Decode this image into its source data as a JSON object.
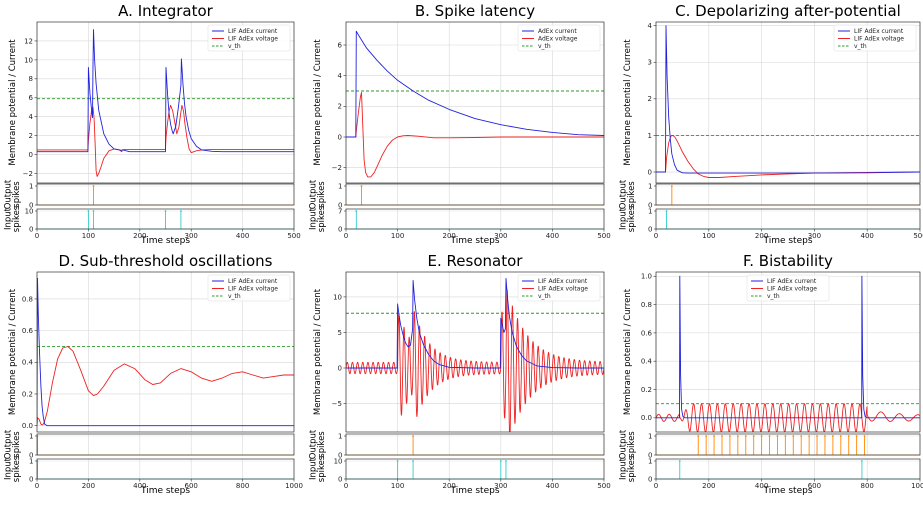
{
  "colors": {
    "current": "#2222dd",
    "voltage": "#ee2222",
    "threshold": "#2a9a2a",
    "output": "#ff8800",
    "input": "#33cccc"
  },
  "chart_data": [
    {
      "type": "line",
      "title": "A. Integrator",
      "ylabel": "Membrane potential / Current",
      "xlabel": "Time steps",
      "out_ylabel": "Output spikes",
      "in_ylabel": "Input spikes",
      "xlim": [
        0,
        500
      ],
      "ylim": [
        -3,
        14
      ],
      "xticks": [
        0,
        100,
        200,
        300,
        400,
        500
      ],
      "yticks": [
        -2,
        0,
        2,
        4,
        6,
        8,
        10,
        12
      ],
      "legend": [
        "LIF AdEx current",
        "LIF AdEx voltage",
        "v_th"
      ],
      "legend_placement": "top-right",
      "threshold": 5.9,
      "series": [
        {
          "name": "LIF AdEx current",
          "x": [
            0,
            99,
            100,
            103,
            106,
            108,
            109,
            110,
            112,
            115,
            120,
            130,
            140,
            150,
            165,
            166,
            170,
            180,
            200,
            250,
            251,
            254,
            257,
            260,
            263,
            265,
            270,
            275,
            280,
            281,
            284,
            287,
            290,
            295,
            300,
            310,
            320,
            340,
            360,
            400,
            500
          ],
          "y": [
            0.3,
            0.3,
            9.2,
            6.5,
            4.8,
            3.9,
            9.5,
            13.2,
            10,
            7.5,
            4.7,
            2.2,
            1.1,
            0.6,
            0.45,
            0.5,
            0.45,
            0.3,
            0.3,
            0.3,
            9.2,
            6.3,
            4.3,
            3.2,
            2.5,
            2.2,
            3,
            5,
            7.3,
            10.1,
            7.4,
            5.4,
            4.0,
            2.6,
            1.7,
            0.9,
            0.5,
            0.35,
            0.3,
            0.3,
            0.3
          ]
        },
        {
          "name": "LIF AdEx voltage",
          "x": [
            0,
            99,
            100,
            103,
            106,
            109,
            111,
            113,
            115,
            117,
            120,
            125,
            130,
            140,
            150,
            160,
            165,
            166,
            170,
            200,
            250,
            251,
            254,
            257,
            260,
            264,
            268,
            272,
            276,
            280,
            282,
            285,
            288,
            292,
            296,
            300,
            305,
            310,
            320,
            340,
            360,
            400,
            500
          ],
          "y": [
            0.5,
            0.5,
            1.5,
            3.3,
            4.6,
            5,
            3.8,
            1.2,
            -1.7,
            -2.3,
            -2,
            -1.2,
            -0.4,
            0.4,
            0.6,
            0.5,
            0.3,
            0.5,
            0.55,
            0.55,
            0.55,
            1.8,
            3.4,
            4.6,
            5.2,
            4.6,
            3.4,
            2.2,
            2.9,
            4.5,
            5.2,
            4.6,
            3.2,
            1.7,
            0.6,
            0.2,
            0.3,
            0.4,
            0.5,
            0.55,
            0.55,
            0.55,
            0.55
          ]
        }
      ],
      "output_spikes": [
        {
          "x": 110,
          "h": 1
        }
      ],
      "out_ylim": [
        0,
        1
      ],
      "out_yticks": [
        0,
        1
      ],
      "input_spikes": [
        {
          "x": 100,
          "h": 10
        },
        {
          "x": 110,
          "h": 10
        },
        {
          "x": 250,
          "h": 10
        },
        {
          "x": 280,
          "h": 10
        }
      ],
      "in_ylim": [
        0,
        10
      ],
      "in_yticks": [
        0,
        10
      ]
    },
    {
      "type": "line",
      "title": "B. Spike latency",
      "ylabel": "Membrane potential / Current",
      "xlabel": "Time steps",
      "out_ylabel": "Output spikes",
      "in_ylabel": "Input spikes",
      "xlim": [
        0,
        500
      ],
      "ylim": [
        -3,
        7.5
      ],
      "xticks": [
        0,
        100,
        200,
        300,
        400,
        500
      ],
      "yticks": [
        -2,
        0,
        2,
        4,
        6
      ],
      "legend": [
        "AdEx current",
        "AdEx voltage",
        "v_th"
      ],
      "legend_placement": "top-right",
      "threshold": 3,
      "series": [
        {
          "name": "AdEx current",
          "x": [
            0,
            19,
            20,
            25,
            40,
            60,
            80,
            100,
            130,
            160,
            200,
            250,
            300,
            350,
            400,
            450,
            500
          ],
          "y": [
            0,
            0,
            6.9,
            6.6,
            5.8,
            5,
            4.3,
            3.7,
            3,
            2.4,
            1.8,
            1.2,
            0.8,
            0.5,
            0.3,
            0.15,
            0.1
          ]
        },
        {
          "name": "AdEx voltage",
          "x": [
            0,
            19,
            20,
            24,
            28,
            30,
            32,
            35,
            38,
            42,
            48,
            55,
            62,
            70,
            80,
            90,
            100,
            110,
            120,
            140,
            170,
            200,
            250,
            300,
            400,
            500
          ],
          "y": [
            0,
            0,
            0.4,
            1.6,
            2.6,
            2.9,
            1.2,
            -1.5,
            -2.3,
            -2.6,
            -2.6,
            -2.3,
            -1.8,
            -1.2,
            -0.6,
            -0.2,
            0,
            0.08,
            0.1,
            0.05,
            -0.05,
            -0.05,
            -0.03,
            0,
            0,
            0
          ]
        }
      ],
      "output_spikes": [
        {
          "x": 30,
          "h": 1
        }
      ],
      "out_ylim": [
        0,
        1
      ],
      "out_yticks": [
        0,
        1
      ],
      "input_spikes": [
        {
          "x": 20,
          "h": 7
        }
      ],
      "in_ylim": [
        0,
        7
      ],
      "in_yticks": [
        0,
        7
      ]
    },
    {
      "type": "line",
      "title": "C. Depolarizing after-potential",
      "ylabel": "Membrane potential / Current",
      "xlabel": "Time steps",
      "out_ylabel": "Output spikes",
      "in_ylabel": "Input spikes",
      "xlim": [
        0,
        500
      ],
      "ylim": [
        -0.3,
        4.1
      ],
      "xticks": [
        0,
        100,
        200,
        300,
        400,
        500
      ],
      "yticks": [
        0,
        1,
        2,
        3,
        4
      ],
      "legend": [
        "LIF AdEx current",
        "LIF AdEx voltage",
        "v_th"
      ],
      "legend_placement": "top-right",
      "threshold": 1,
      "series": [
        {
          "name": "LIF AdEx current",
          "x": [
            0,
            18,
            19,
            21,
            24,
            27,
            30,
            35,
            40,
            50,
            60,
            80,
            100,
            150,
            200,
            300,
            400,
            500
          ],
          "y": [
            0,
            0,
            4,
            2.6,
            1.5,
            0.9,
            0.5,
            0.2,
            0.05,
            -0.02,
            -0.03,
            -0.03,
            -0.03,
            -0.03,
            -0.03,
            -0.03,
            -0.02,
            0
          ]
        },
        {
          "name": "LIF AdEx voltage",
          "x": [
            0,
            18,
            20,
            24,
            28,
            32,
            36,
            40,
            45,
            50,
            60,
            70,
            80,
            90,
            100,
            120,
            150,
            200,
            250,
            300,
            400,
            500
          ],
          "y": [
            0,
            0,
            0.4,
            0.8,
            0.98,
            1,
            0.95,
            0.85,
            0.7,
            0.55,
            0.3,
            0.1,
            -0.05,
            -0.12,
            -0.15,
            -0.15,
            -0.12,
            -0.08,
            -0.05,
            -0.03,
            -0.01,
            0
          ]
        }
      ],
      "output_spikes": [
        {
          "x": 30,
          "h": 1
        }
      ],
      "out_ylim": [
        0,
        1
      ],
      "out_yticks": [
        0,
        1
      ],
      "input_spikes": [
        {
          "x": 20,
          "h": 1
        }
      ],
      "in_ylim": [
        0,
        1
      ],
      "in_yticks": [
        0,
        1
      ]
    },
    {
      "type": "line",
      "title": "D. Sub-threshold oscillations",
      "ylabel": "Membrane potential / Current",
      "xlabel": "Time steps",
      "out_ylabel": "Output spikes",
      "in_ylabel": "Input spikes",
      "xlim": [
        0,
        1000
      ],
      "ylim": [
        -0.04,
        0.97
      ],
      "xticks": [
        0,
        200,
        400,
        600,
        800,
        1000
      ],
      "yticks": [
        0.0,
        0.2,
        0.4,
        0.6,
        0.8
      ],
      "legend": [
        "LIF AdEx current",
        "LIF AdEx voltage",
        "v_th"
      ],
      "legend_placement": "top-right",
      "threshold": 0.5,
      "series": [
        {
          "name": "LIF AdEx current",
          "x": [
            0,
            2,
            5,
            10,
            15,
            20,
            25,
            30,
            40,
            60,
            100,
            200,
            1000
          ],
          "y": [
            0,
            0.93,
            0.7,
            0.45,
            0.25,
            0.12,
            0.05,
            0.01,
            0,
            0,
            0,
            0,
            0
          ]
        },
        {
          "name": "LIF AdEx voltage",
          "x": [
            0,
            2,
            8,
            15,
            20,
            25,
            30,
            40,
            60,
            80,
            100,
            120,
            140,
            170,
            200,
            220,
            235,
            260,
            300,
            340,
            380,
            420,
            450,
            480,
            520,
            560,
            600,
            640,
            680,
            720,
            760,
            800,
            840,
            880,
            920,
            960,
            1000
          ],
          "y": [
            0,
            0.05,
            0.04,
            0.01,
            0.005,
            0.01,
            0.03,
            0.09,
            0.27,
            0.42,
            0.49,
            0.5,
            0.47,
            0.35,
            0.22,
            0.19,
            0.2,
            0.25,
            0.35,
            0.39,
            0.36,
            0.29,
            0.26,
            0.27,
            0.33,
            0.36,
            0.34,
            0.3,
            0.28,
            0.3,
            0.33,
            0.34,
            0.32,
            0.3,
            0.31,
            0.32,
            0.32
          ]
        }
      ],
      "output_spikes": [
        {
          "x": 2,
          "h": 1
        }
      ],
      "out_ylim": [
        0,
        1
      ],
      "out_yticks": [
        0,
        1
      ],
      "input_spikes": [
        {
          "x": 2,
          "h": 1
        }
      ],
      "in_ylim": [
        0,
        1
      ],
      "in_yticks": [
        0,
        1
      ]
    },
    {
      "type": "line",
      "title": "E. Resonator",
      "ylabel": "Membrane potential / Current",
      "xlabel": "Time steps",
      "out_ylabel": "Output spikes",
      "in_ylabel": "Input spikes",
      "xlim": [
        0,
        500
      ],
      "ylim": [
        -9,
        13.5
      ],
      "xticks": [
        0,
        100,
        200,
        300,
        400,
        500
      ],
      "yticks": [
        -5,
        0,
        5,
        10
      ],
      "legend": [
        "LIF AdEx current",
        "LIF AdEx voltage",
        "v_th"
      ],
      "legend_placement": "top-right",
      "threshold": 7.7,
      "series": [
        {
          "name": "LIF AdEx current",
          "x": [
            0,
            99,
            100,
            103,
            106,
            110,
            115,
            120,
            125,
            129,
            130,
            133,
            137,
            142,
            150,
            160,
            170,
            180,
            200,
            250,
            299,
            300,
            303,
            306,
            309,
            310,
            313,
            317,
            322,
            330,
            340,
            350,
            370,
            400,
            450,
            500
          ],
          "y": [
            0,
            0,
            9,
            7.4,
            6,
            4.8,
            3.6,
            3,
            3.2,
            5.5,
            12.3,
            9.6,
            7.1,
            5,
            3.3,
            1.9,
            1,
            0.5,
            0.1,
            0,
            0,
            7,
            6,
            5,
            5.5,
            12.6,
            9.8,
            7.1,
            5,
            3.1,
            1.8,
            1,
            0.3,
            0.05,
            0,
            0
          ]
        },
        {
          "name": "LIF AdEx voltage",
          "type": "damped_oscillation",
          "period": 10,
          "baseline_amplitude": 0.8,
          "pulses": [
            {
              "t": 100,
              "amplitude": 7.5,
              "decay": 30
            },
            {
              "t": 130,
              "amplitude": 5,
              "decay": 30
            },
            {
              "t": 300,
              "amplitude": 7.5,
              "decay": 40
            },
            {
              "t": 310,
              "amplitude": 5,
              "decay": 40
            }
          ]
        }
      ],
      "output_spikes": [
        {
          "x": 130,
          "h": 1
        }
      ],
      "out_ylim": [
        0,
        1
      ],
      "out_yticks": [
        0,
        1
      ],
      "input_spikes": [
        {
          "x": 100,
          "h": 10
        },
        {
          "x": 130,
          "h": 10
        },
        {
          "x": 300,
          "h": 10
        },
        {
          "x": 310,
          "h": 10
        }
      ],
      "in_ylim": [
        0,
        10
      ],
      "in_yticks": [
        0,
        10
      ]
    },
    {
      "type": "line",
      "title": "F. Bistability",
      "ylabel": "Membrane potential / Current",
      "xlabel": "Time steps",
      "out_ylabel": "Output spikes",
      "in_ylabel": "Input spikes",
      "xlim": [
        0,
        1000
      ],
      "ylim": [
        -0.1,
        1.03
      ],
      "xticks": [
        0,
        200,
        400,
        600,
        800,
        1000
      ],
      "yticks": [
        0.0,
        0.2,
        0.4,
        0.6,
        0.8,
        1.0
      ],
      "legend": [
        "LIF AdEx current",
        "LIF AdEx voltage",
        "v_th"
      ],
      "legend_placement": "top-center",
      "threshold": 0.1,
      "series": [
        {
          "name": "LIF AdEx current",
          "x": [
            0,
            89,
            90,
            93,
            97,
            102,
            110,
            130,
            200,
            400,
            600,
            779,
            780,
            783,
            787,
            792,
            800,
            820,
            900,
            1000
          ],
          "y": [
            0,
            0,
            1,
            0.3,
            0.06,
            0.01,
            0,
            0,
            0,
            0,
            0,
            0,
            1,
            0.3,
            0.06,
            0.01,
            0,
            0,
            0,
            0
          ]
        },
        {
          "name": "LIF AdEx voltage",
          "type": "oscillation",
          "pre_end": 90,
          "pre_period": 40,
          "pre_amplitude": 0.025,
          "mid_start": 90,
          "mid_end": 800,
          "mid_period": 30,
          "mid_amplitude": 0.1,
          "mid_center": 0.0,
          "post_period": 70,
          "post_amplitude": 0.04,
          "post_decay": 300
        }
      ],
      "output_spikes": [
        {
          "x": 160,
          "h": 1
        },
        {
          "x": 190,
          "h": 1
        },
        {
          "x": 220,
          "h": 1
        },
        {
          "x": 250,
          "h": 1
        },
        {
          "x": 280,
          "h": 1
        },
        {
          "x": 310,
          "h": 1
        },
        {
          "x": 340,
          "h": 1
        },
        {
          "x": 370,
          "h": 1
        },
        {
          "x": 400,
          "h": 1
        },
        {
          "x": 430,
          "h": 1
        },
        {
          "x": 460,
          "h": 1
        },
        {
          "x": 490,
          "h": 1
        },
        {
          "x": 520,
          "h": 1
        },
        {
          "x": 550,
          "h": 1
        },
        {
          "x": 580,
          "h": 1
        },
        {
          "x": 610,
          "h": 1
        },
        {
          "x": 640,
          "h": 1
        },
        {
          "x": 670,
          "h": 1
        },
        {
          "x": 700,
          "h": 1
        },
        {
          "x": 730,
          "h": 1
        },
        {
          "x": 760,
          "h": 1
        },
        {
          "x": 790,
          "h": 1
        }
      ],
      "out_ylim": [
        0,
        1
      ],
      "out_yticks": [
        0,
        1
      ],
      "input_spikes": [
        {
          "x": 90,
          "h": 1
        },
        {
          "x": 780,
          "h": 1
        }
      ],
      "in_ylim": [
        0,
        1
      ],
      "in_yticks": [
        0,
        1
      ]
    }
  ]
}
